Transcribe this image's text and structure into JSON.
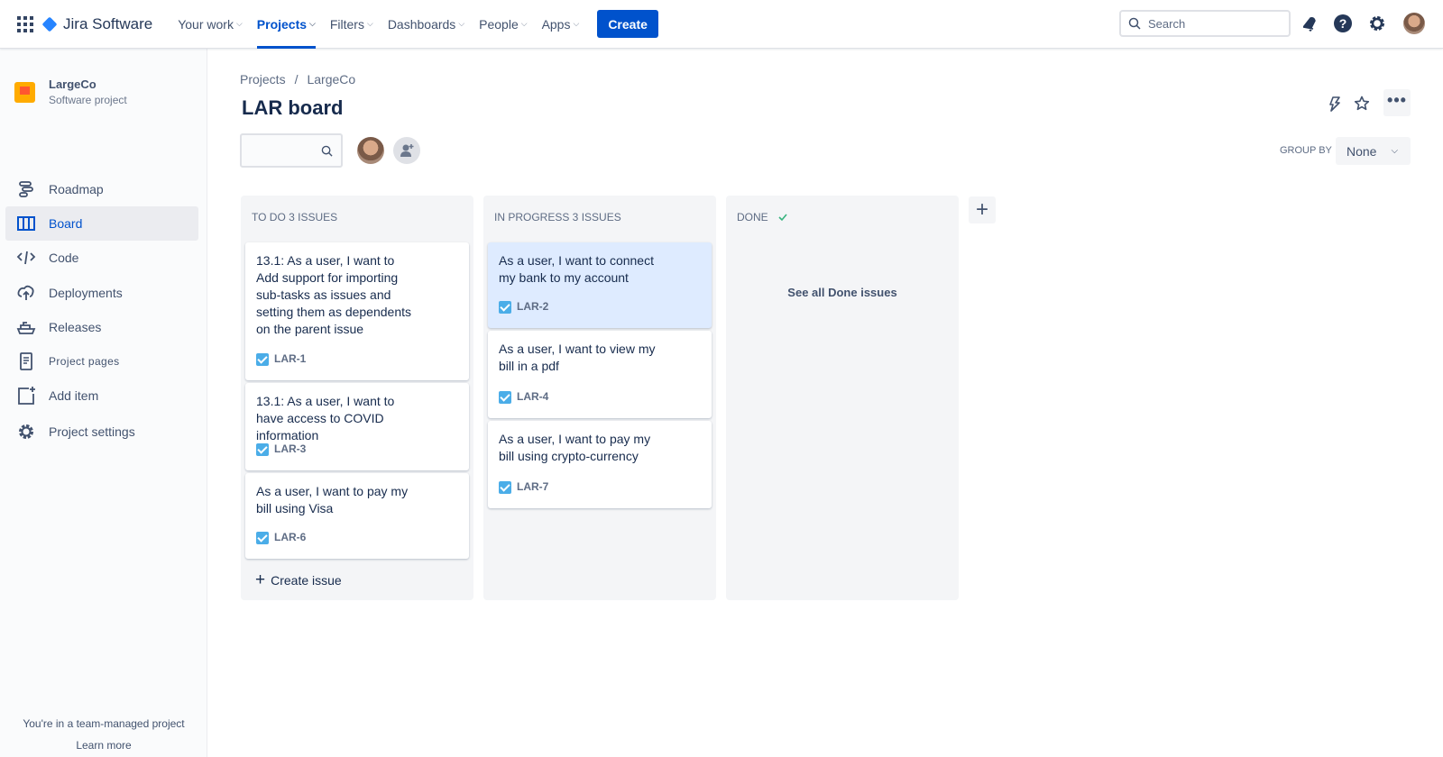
{
  "header": {
    "app_name": "Jira Software",
    "nav": [
      {
        "label": "Your work"
      },
      {
        "label": "Projects",
        "active": true
      },
      {
        "label": "Filters"
      },
      {
        "label": "Dashboards"
      },
      {
        "label": "People"
      },
      {
        "label": "Apps"
      }
    ],
    "create_label": "Create",
    "search_placeholder": "Search"
  },
  "sidebar": {
    "project_name": "LargeCo",
    "project_type": "Software project",
    "items": [
      {
        "label": "Roadmap",
        "icon": "roadmap-icon"
      },
      {
        "label": "Board",
        "icon": "board-icon",
        "active": true
      },
      {
        "label": "Code",
        "icon": "code-icon"
      },
      {
        "label": "Deployments",
        "icon": "cloud-upload-icon"
      },
      {
        "label": "Releases",
        "icon": "ship-icon"
      },
      {
        "label": "Project pages",
        "icon": "page-icon"
      },
      {
        "label": "Add item",
        "icon": "add-item-icon"
      },
      {
        "label": "Project settings",
        "icon": "gear-icon"
      }
    ],
    "footer_text": "You're in a team-managed project",
    "footer_link": "Learn more"
  },
  "main": {
    "breadcrumb": [
      "Projects",
      "LargeCo"
    ],
    "title": "LAR board",
    "group_by_label": "GROUP BY",
    "group_by_value": "None",
    "columns": [
      {
        "title": "TO DO 3 ISSUES",
        "cards": [
          {
            "text": "13.1: As a user, I want to Add support for importing sub-tasks as issues and setting them as dependents on the parent issue",
            "key": "LAR-1"
          },
          {
            "text": "13.1: As a user, I want to have access to COVID information",
            "key": "LAR-3"
          },
          {
            "text": "As a user, I want to pay my bill using Visa",
            "key": "LAR-6"
          }
        ],
        "footer": "Create issue"
      },
      {
        "title": "IN PROGRESS 3 ISSUES",
        "cards": [
          {
            "text": "As a user, I want to connect my bank to my account",
            "key": "LAR-2",
            "selected": true
          },
          {
            "text": "As a user, I want to view my bill in a pdf",
            "key": "LAR-4"
          },
          {
            "text": "As a user, I want to pay my bill using crypto-currency",
            "key": "LAR-7"
          }
        ]
      },
      {
        "title": "DONE",
        "done_link": "See all Done issues"
      }
    ]
  },
  "colors": {
    "brand": "#0052cc",
    "checkbox": "#4bade8",
    "done_check": "#36b37e"
  }
}
